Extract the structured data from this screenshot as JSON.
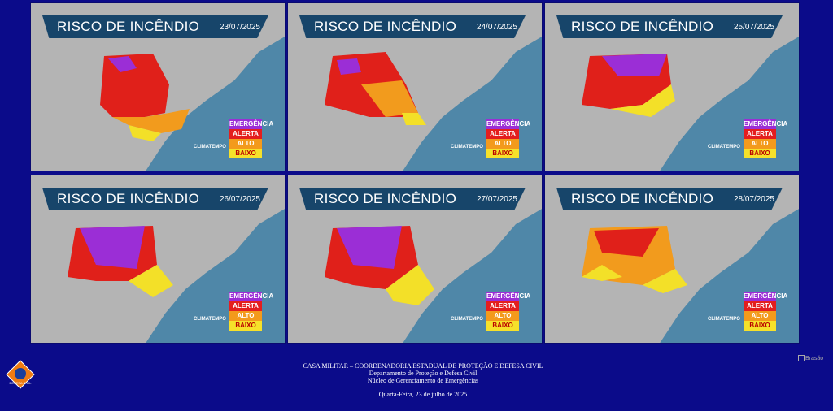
{
  "panels": [
    {
      "title": "RISCO DE INCÊNDIO",
      "date": "23/07/2025"
    },
    {
      "title": "RISCO DE INCÊNDIO",
      "date": "24/07/2025"
    },
    {
      "title": "RISCO DE INCÊNDIO",
      "date": "25/07/2025"
    },
    {
      "title": "RISCO DE INCÊNDIO",
      "date": "26/07/2025"
    },
    {
      "title": "RISCO DE INCÊNDIO",
      "date": "27/07/2025"
    },
    {
      "title": "RISCO DE INCÊNDIO",
      "date": "28/07/2025"
    }
  ],
  "brand": "CLIMATEMPO",
  "legend": [
    {
      "label": "EMERGÊNCIA",
      "color": "#9b2ed6"
    },
    {
      "label": "ALERTA",
      "color": "#e41e1e"
    },
    {
      "label": "ALTO",
      "color": "#f39a1c"
    },
    {
      "label": "BAIXO",
      "color": "#f6e12a"
    }
  ],
  "footer": {
    "line1": "CASA MILITAR – COORDENADORIA ESTADUAL DE PROTEÇÃO E DEFESA CIVIL",
    "line2": "Departamento de Proteção e Defesa Civil",
    "line3": "Núcleo de Gerenciamento de Emergências",
    "date": "Quarta-Feira, 23 de julho de 2025"
  },
  "broken_image_alt": "Brasão"
}
